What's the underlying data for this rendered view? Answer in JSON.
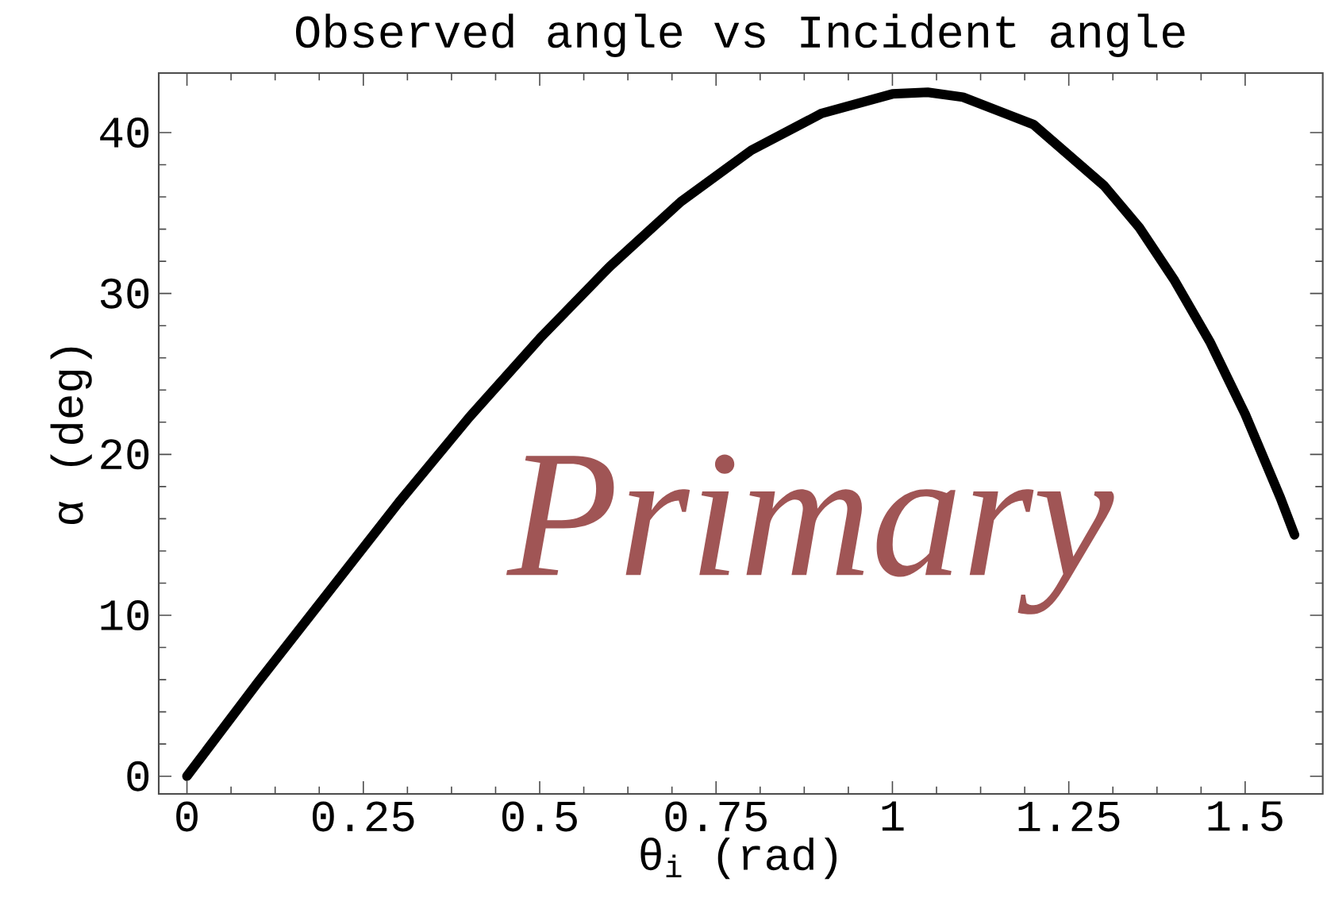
{
  "chart_data": {
    "type": "line",
    "title": "Observed angle vs Incident angle",
    "xlabel": "θ$_{i}$ (rad)",
    "ylabel": "α (deg)",
    "annotations": [
      "Primary"
    ],
    "x": [
      0,
      0.1,
      0.2,
      0.3,
      0.4,
      0.5,
      0.6,
      0.7,
      0.8,
      0.9,
      1.0,
      1.05,
      1.1,
      1.2,
      1.3,
      1.35,
      1.4,
      1.45,
      1.5,
      1.55,
      1.57
    ],
    "series": [
      {
        "color": "#000000",
        "values": [
          0,
          5.8,
          11.4,
          17,
          22.3,
          27.2,
          31.7,
          35.7,
          38.9,
          41.2,
          42.4,
          42.5,
          42.2,
          40.5,
          36.7,
          34.1,
          30.8,
          27,
          22.5,
          17.3,
          15
        ]
      }
    ],
    "xlim": [
      -0.04,
      1.61
    ],
    "ylim": [
      -1.1,
      43.7
    ],
    "xticks": [
      0,
      0.25,
      0.5,
      0.75,
      1,
      1.25,
      1.5
    ],
    "yticks": [
      0,
      10,
      20,
      30,
      40
    ],
    "grid": false,
    "marker": "none",
    "line_style": "solid"
  }
}
